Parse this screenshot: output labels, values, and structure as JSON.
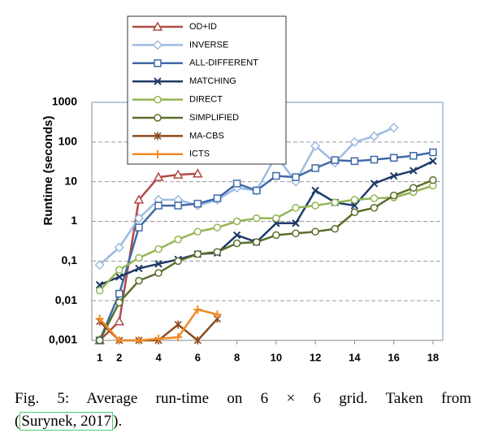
{
  "chart_data": {
    "type": "line",
    "ylabel": "Runtime (seconds)",
    "log_y": true,
    "grid": true,
    "xlim": [
      0.6,
      18.5
    ],
    "xticks": [
      1,
      2,
      4,
      6,
      8,
      10,
      12,
      14,
      16,
      18
    ],
    "ylim": [
      0.001,
      1000
    ],
    "yticks": [
      {
        "value": 0.001,
        "label": "0,001"
      },
      {
        "value": 0.01,
        "label": "0,01"
      },
      {
        "value": 0.1,
        "label": "0,1"
      },
      1,
      10,
      100,
      1000
    ],
    "series": [
      {
        "name": "OD+ID",
        "color": "#b04a45",
        "marker": "triangle",
        "x": [
          1,
          2,
          3,
          4,
          5,
          6
        ],
        "values": [
          0.001,
          0.003,
          3.5,
          13,
          15,
          16
        ]
      },
      {
        "name": "INVERSE",
        "color": "#9dbbe0",
        "marker": "diamond",
        "x": [
          1,
          2,
          3,
          4,
          5,
          6,
          7,
          8,
          9,
          10,
          11,
          12,
          13,
          14,
          15,
          16
        ],
        "values": [
          0.08,
          0.22,
          1.2,
          3.5,
          3.5,
          2.5,
          3.5,
          7,
          6,
          45,
          10,
          80,
          30,
          100,
          140,
          230
        ]
      },
      {
        "name": "ALL-DIFFERENT",
        "color": "#3f6aa8",
        "marker": "square",
        "x": [
          1,
          2,
          3,
          4,
          5,
          6,
          7,
          8,
          9,
          10,
          11,
          12,
          13,
          14,
          15,
          16,
          17,
          18
        ],
        "values": [
          0.001,
          0.015,
          0.7,
          2.5,
          2.5,
          2.8,
          3.8,
          9,
          6,
          14,
          13,
          22,
          35,
          33,
          36,
          40,
          45,
          55
        ]
      },
      {
        "name": "MATCHING",
        "color": "#1f3a68",
        "marker": "x",
        "x": [
          1,
          2,
          3,
          4,
          5,
          6,
          7,
          8,
          9,
          10,
          11,
          12,
          13,
          14,
          15,
          16,
          17,
          18
        ],
        "values": [
          0.025,
          0.04,
          0.065,
          0.085,
          0.11,
          0.15,
          0.16,
          0.45,
          0.3,
          0.9,
          0.9,
          6,
          3,
          2.5,
          9,
          14,
          19,
          33
        ]
      },
      {
        "name": "DIRECT",
        "color": "#93b554",
        "marker": "circle",
        "x": [
          1,
          2,
          3,
          4,
          5,
          6,
          7,
          8,
          9,
          10,
          11,
          12,
          13,
          14,
          15,
          16,
          17,
          18
        ],
        "values": [
          0.018,
          0.06,
          0.12,
          0.2,
          0.35,
          0.55,
          0.7,
          1.0,
          1.2,
          1.2,
          2.2,
          2.5,
          3,
          3.5,
          3.8,
          4,
          5.5,
          8
        ]
      },
      {
        "name": "SIMPLIFIED",
        "color": "#5a6e2b",
        "marker": "circle",
        "x": [
          1,
          2,
          3,
          4,
          5,
          6,
          7,
          8,
          9,
          10,
          11,
          12,
          13,
          14,
          15,
          16,
          17,
          18
        ],
        "values": [
          0.001,
          0.009,
          0.032,
          0.05,
          0.1,
          0.15,
          0.17,
          0.28,
          0.3,
          0.45,
          0.5,
          0.55,
          0.65,
          1.7,
          2.2,
          4.5,
          7,
          11
        ]
      },
      {
        "name": "MA-CBS",
        "color": "#8b4a1e",
        "marker": "star",
        "x": [
          1,
          2,
          3,
          4,
          5,
          6,
          7
        ],
        "values": [
          0.003,
          0.001,
          0.001,
          0.001,
          0.0025,
          0.001,
          0.0035
        ]
      },
      {
        "name": "ICTS",
        "color": "#f08a24",
        "marker": "plus",
        "x": [
          1,
          2,
          3,
          4,
          5,
          6,
          7
        ],
        "values": [
          0.0035,
          0.001,
          0.001,
          0.0011,
          0.0012,
          0.006,
          0.0045
        ]
      }
    ]
  },
  "caption": {
    "text": "Fig. 5: Average run-time on 6 × 6 grid. Taken from",
    "open": "(",
    "citation": "Surynek, 2017",
    "close": ")."
  }
}
